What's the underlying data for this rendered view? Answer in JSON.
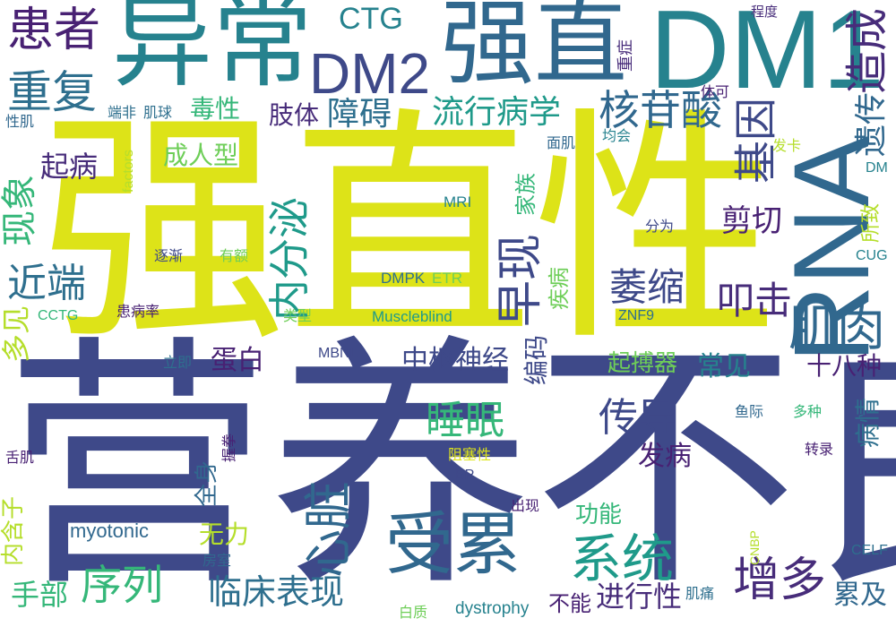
{
  "title": "",
  "palette": {
    "navy": "#3e4989",
    "indigo": "#472c7a",
    "blue": "#31688e",
    "steel": "#2e6f8e",
    "teal": "#26828e",
    "cyan": "#1f9a8a",
    "green": "#35b779",
    "lime": "#6ece58",
    "chartreuse": "#b5de2b",
    "yellow": "#dde318",
    "purple": "#482173"
  },
  "words": [
    {
      "text": "营养不良"
    },
    {
      "text": "强直性"
    },
    {
      "text": "异常"
    },
    {
      "text": "强直"
    },
    {
      "text": "DM1"
    },
    {
      "text": "RNA"
    },
    {
      "text": "DM2"
    },
    {
      "text": "患者"
    },
    {
      "text": "CTG"
    },
    {
      "text": "造成"
    },
    {
      "text": "重复"
    },
    {
      "text": "遗传"
    },
    {
      "text": "基因"
    },
    {
      "text": "核苷酸"
    },
    {
      "text": "流行病学"
    },
    {
      "text": "障碍"
    },
    {
      "text": "肢体"
    },
    {
      "text": "毒性"
    },
    {
      "text": "受累"
    },
    {
      "text": "增多"
    },
    {
      "text": "系统"
    },
    {
      "text": "序列"
    },
    {
      "text": "临床表现"
    },
    {
      "text": "心脏"
    },
    {
      "text": "传导"
    },
    {
      "text": "睡眠"
    },
    {
      "text": "肌肉"
    },
    {
      "text": "叩击"
    },
    {
      "text": "萎缩"
    },
    {
      "text": "早现"
    },
    {
      "text": "内分泌"
    },
    {
      "text": "近端"
    },
    {
      "text": "现象"
    },
    {
      "text": "起病"
    },
    {
      "text": "成人型"
    },
    {
      "text": "剪切"
    },
    {
      "text": "中枢神经"
    },
    {
      "text": "蛋白"
    },
    {
      "text": "常见"
    },
    {
      "text": "起搏器"
    },
    {
      "text": "十八种"
    },
    {
      "text": "编码"
    },
    {
      "text": "疾病"
    },
    {
      "text": "家族"
    },
    {
      "text": "多见"
    },
    {
      "text": "手部"
    },
    {
      "text": "进行性"
    },
    {
      "text": "累及"
    },
    {
      "text": "不能"
    },
    {
      "text": "发病"
    },
    {
      "text": "功能"
    },
    {
      "text": "无力"
    },
    {
      "text": "全身"
    },
    {
      "text": "内含子"
    },
    {
      "text": "myotonic"
    },
    {
      "text": "dystrophy"
    },
    {
      "text": "Muscleblind"
    },
    {
      "text": "DMPK"
    },
    {
      "text": "ETR"
    },
    {
      "text": "MRI"
    },
    {
      "text": "MBNL"
    },
    {
      "text": "CCTG"
    },
    {
      "text": "ZNF9"
    },
    {
      "text": "CUG"
    },
    {
      "text": "DM"
    },
    {
      "text": "CELF"
    },
    {
      "text": "CNBP"
    },
    {
      "text": "BP"
    },
    {
      "text": "factors"
    },
    {
      "text": "性肌"
    },
    {
      "text": "端非"
    },
    {
      "text": "肌球"
    },
    {
      "text": "体可"
    },
    {
      "text": "程度"
    },
    {
      "text": "面肌"
    },
    {
      "text": "均会"
    },
    {
      "text": "发卡"
    },
    {
      "text": "分为"
    },
    {
      "text": "所致"
    },
    {
      "text": "逐渐"
    },
    {
      "text": "有额"
    },
    {
      "text": "患病率"
    },
    {
      "text": "类型"
    },
    {
      "text": "立即"
    },
    {
      "text": "舌肌"
    },
    {
      "text": "握拳"
    },
    {
      "text": "阻塞性"
    },
    {
      "text": "出现"
    },
    {
      "text": "鱼际"
    },
    {
      "text": "多种"
    },
    {
      "text": "转录"
    },
    {
      "text": "病情"
    },
    {
      "text": "房室"
    },
    {
      "text": "肌痛"
    },
    {
      "text": "白质"
    },
    {
      "text": "重症"
    }
  ]
}
